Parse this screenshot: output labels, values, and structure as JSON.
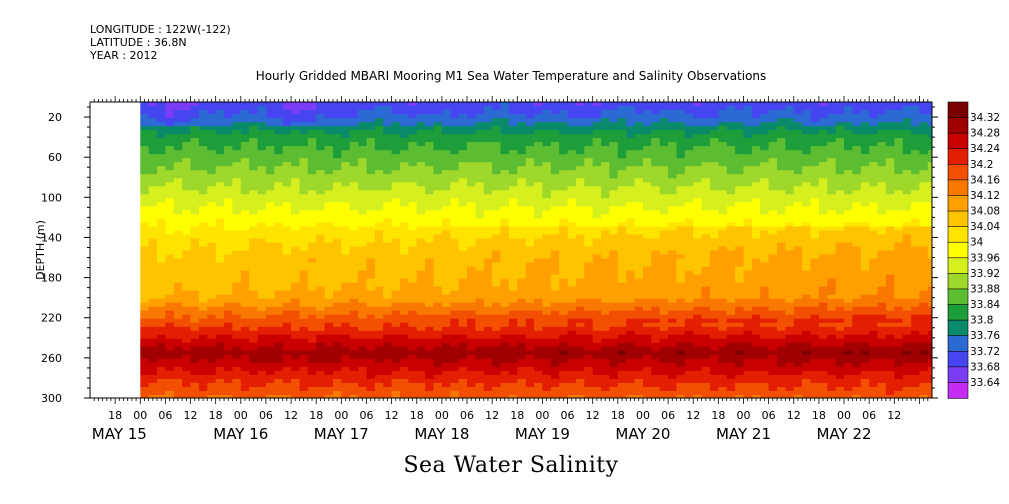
{
  "header": {
    "longitude": "LONGITUDE : 122W(-122)",
    "latitude": "LATITUDE : 36.8N",
    "year": "YEAR : 2012"
  },
  "chart_data": {
    "type": "heatmap",
    "title": "Hourly Gridded MBARI Mooring M1 Sea Water Temperature and Salinity Observations",
    "xlabel": "Sea Water Salinity",
    "ylabel": "DEPTH (m)",
    "x_range_hours_from_may15_00": [
      -12,
      189
    ],
    "data_start_label": "MAY 15 00",
    "y_range_depth_m": [
      300,
      5
    ],
    "y_ticks": [
      20,
      60,
      100,
      140,
      180,
      220,
      260,
      300
    ],
    "x_hour_ticks": [
      "18",
      "00",
      "06",
      "12",
      "18",
      "00",
      "06",
      "12",
      "18",
      "00",
      "06",
      "12",
      "18",
      "00",
      "06",
      "12",
      "18",
      "00",
      "06",
      "12",
      "18",
      "00",
      "06",
      "12",
      "18",
      "00",
      "06",
      "12",
      "18",
      "00",
      "06",
      "12"
    ],
    "x_day_labels": [
      "MAY 15",
      "MAY 16",
      "MAY 17",
      "MAY 18",
      "MAY 19",
      "MAY 20",
      "MAY 21",
      "MAY 22"
    ],
    "colorbar_levels": [
      34.32,
      34.28,
      34.24,
      34.2,
      34.16,
      34.12,
      34.08,
      34.04,
      34,
      33.96,
      33.92,
      33.88,
      33.84,
      33.8,
      33.76,
      33.72,
      33.68,
      33.64
    ],
    "colorbar_colors": [
      "#7a0000",
      "#a00000",
      "#c80000",
      "#e41e00",
      "#f25000",
      "#f87800",
      "#ffa000",
      "#ffc400",
      "#ffe400",
      "#ffff00",
      "#d6ef1e",
      "#9ed82a",
      "#5dbd32",
      "#1e9e3a",
      "#0a8a6a",
      "#2a6ad2",
      "#4646f0",
      "#7a3cf4",
      "#c42cf4"
    ],
    "depth_profile": [
      {
        "depth": 5,
        "salinity": 33.7
      },
      {
        "depth": 20,
        "salinity": 33.74
      },
      {
        "depth": 40,
        "salinity": 33.82
      },
      {
        "depth": 60,
        "salinity": 33.86
      },
      {
        "depth": 80,
        "salinity": 33.9
      },
      {
        "depth": 100,
        "salinity": 33.94
      },
      {
        "depth": 120,
        "salinity": 33.98
      },
      {
        "depth": 140,
        "salinity": 34.02
      },
      {
        "depth": 160,
        "salinity": 34.05
      },
      {
        "depth": 180,
        "salinity": 34.06
      },
      {
        "depth": 200,
        "salinity": 34.08
      },
      {
        "depth": 220,
        "salinity": 34.16
      },
      {
        "depth": 240,
        "salinity": 34.24
      },
      {
        "depth": 255,
        "salinity": 34.3
      },
      {
        "depth": 270,
        "salinity": 34.25
      },
      {
        "depth": 285,
        "salinity": 34.2
      },
      {
        "depth": 300,
        "salinity": 34.16
      }
    ]
  }
}
